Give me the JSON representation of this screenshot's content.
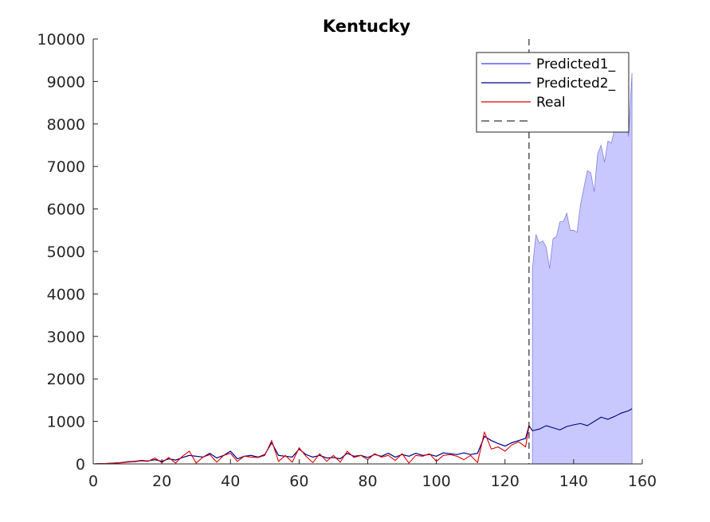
{
  "chart_data": {
    "type": "line",
    "title": "Kentucky",
    "xlabel": "",
    "ylabel": "",
    "xlim": [
      0,
      160
    ],
    "ylim": [
      0,
      10000
    ],
    "xticks": [
      0,
      20,
      40,
      60,
      80,
      100,
      120,
      140,
      160
    ],
    "yticks": [
      0,
      1000,
      2000,
      3000,
      4000,
      5000,
      6000,
      7000,
      8000,
      9000,
      10000
    ],
    "grid": false,
    "legend_position": "top-right",
    "vline": {
      "x": 127,
      "style": "dashed",
      "color": "#000000"
    },
    "colors": {
      "predicted1": "#3a3aff",
      "predicted2": "#00007f",
      "real": "#e00000",
      "band_fill": "#c8c8ff",
      "band_edge": "#8080e0"
    },
    "legend": [
      "Predicted1_",
      "Predicted2_",
      "Real",
      ""
    ],
    "series": [
      {
        "name": "Predicted1_",
        "x": [
          0,
          2,
          4,
          6,
          8,
          10,
          12,
          14,
          16,
          18,
          20,
          22,
          24,
          26,
          28,
          30,
          32,
          34,
          36,
          38,
          40,
          42,
          44,
          46,
          48,
          50,
          52,
          54,
          56,
          58,
          60,
          62,
          64,
          66,
          68,
          70,
          72,
          74,
          76,
          78,
          80,
          82,
          84,
          86,
          88,
          90,
          92,
          94,
          96,
          98,
          100,
          102,
          104,
          106,
          108,
          110,
          112,
          114,
          116,
          118,
          120,
          122,
          124,
          126,
          127
        ],
        "values": [
          0,
          5,
          10,
          20,
          30,
          50,
          60,
          80,
          70,
          100,
          60,
          120,
          90,
          150,
          200,
          180,
          160,
          250,
          140,
          200,
          300,
          120,
          180,
          200,
          160,
          220,
          500,
          200,
          180,
          160,
          350,
          220,
          160,
          200,
          140,
          150,
          120,
          250,
          180,
          200,
          150,
          220,
          180,
          250,
          160,
          220,
          180,
          250,
          200,
          220,
          180,
          260,
          240,
          220,
          260,
          220,
          250,
          650,
          550,
          480,
          420,
          500,
          550,
          600,
          900
        ]
      },
      {
        "name": "Predicted2_",
        "x": [
          0,
          2,
          4,
          6,
          8,
          10,
          12,
          14,
          16,
          18,
          20,
          22,
          24,
          26,
          28,
          30,
          32,
          34,
          36,
          38,
          40,
          42,
          44,
          46,
          48,
          50,
          52,
          54,
          56,
          58,
          60,
          62,
          64,
          66,
          68,
          70,
          72,
          74,
          76,
          78,
          80,
          82,
          84,
          86,
          88,
          90,
          92,
          94,
          96,
          98,
          100,
          102,
          104,
          106,
          108,
          110,
          112,
          114,
          116,
          118,
          120,
          122,
          124,
          126,
          127,
          128,
          130,
          132,
          134,
          136,
          138,
          140,
          142,
          144,
          146,
          148,
          150,
          152,
          154,
          156,
          157
        ],
        "values": [
          0,
          5,
          10,
          20,
          30,
          50,
          60,
          80,
          70,
          100,
          60,
          120,
          90,
          150,
          200,
          180,
          160,
          250,
          140,
          200,
          300,
          120,
          180,
          200,
          160,
          220,
          500,
          200,
          180,
          160,
          350,
          220,
          160,
          200,
          140,
          150,
          120,
          250,
          180,
          200,
          150,
          220,
          180,
          250,
          160,
          220,
          180,
          250,
          200,
          220,
          180,
          260,
          240,
          220,
          260,
          220,
          250,
          650,
          550,
          480,
          420,
          500,
          550,
          600,
          900,
          780,
          820,
          900,
          850,
          800,
          880,
          920,
          950,
          900,
          1000,
          1100,
          1050,
          1120,
          1200,
          1250,
          1300
        ]
      },
      {
        "name": "Real",
        "x": [
          0,
          2,
          4,
          6,
          8,
          10,
          12,
          14,
          16,
          18,
          20,
          22,
          24,
          26,
          28,
          30,
          32,
          34,
          36,
          38,
          40,
          42,
          44,
          46,
          48,
          50,
          52,
          54,
          56,
          58,
          60,
          62,
          64,
          66,
          68,
          70,
          72,
          74,
          76,
          78,
          80,
          82,
          84,
          86,
          88,
          90,
          92,
          94,
          96,
          98,
          100,
          102,
          104,
          106,
          108,
          110,
          112,
          114,
          116,
          118,
          120,
          122,
          124,
          126,
          127
        ],
        "values": [
          0,
          5,
          10,
          15,
          25,
          40,
          50,
          70,
          60,
          140,
          30,
          150,
          20,
          180,
          300,
          20,
          160,
          220,
          40,
          200,
          250,
          60,
          180,
          160,
          150,
          200,
          550,
          60,
          200,
          40,
          380,
          180,
          30,
          240,
          60,
          200,
          40,
          300,
          150,
          200,
          100,
          240,
          160,
          200,
          80,
          240,
          20,
          200,
          180,
          240,
          60,
          200,
          220,
          180,
          100,
          200,
          30,
          750,
          350,
          400,
          300,
          450,
          520,
          400,
          900
        ]
      }
    ],
    "band": {
      "name": "uncertainty",
      "x": [
        128,
        129,
        130,
        131,
        132,
        133,
        134,
        135,
        136,
        137,
        138,
        139,
        140,
        141,
        142,
        143,
        144,
        145,
        146,
        147,
        148,
        149,
        150,
        151,
        152,
        153,
        154,
        155,
        156,
        157
      ],
      "upper": [
        4600,
        5400,
        5200,
        5250,
        5100,
        4600,
        5300,
        5350,
        5700,
        5700,
        5900,
        5500,
        5500,
        5450,
        6100,
        6500,
        6900,
        6850,
        6400,
        7300,
        7500,
        7100,
        7600,
        7550,
        7900,
        8200,
        8400,
        8300,
        7700,
        9200
      ],
      "lower": [
        0,
        0,
        0,
        0,
        0,
        0,
        0,
        0,
        0,
        0,
        0,
        0,
        0,
        0,
        0,
        0,
        0,
        0,
        0,
        0,
        0,
        0,
        0,
        0,
        0,
        0,
        0,
        0,
        0,
        0
      ]
    }
  }
}
